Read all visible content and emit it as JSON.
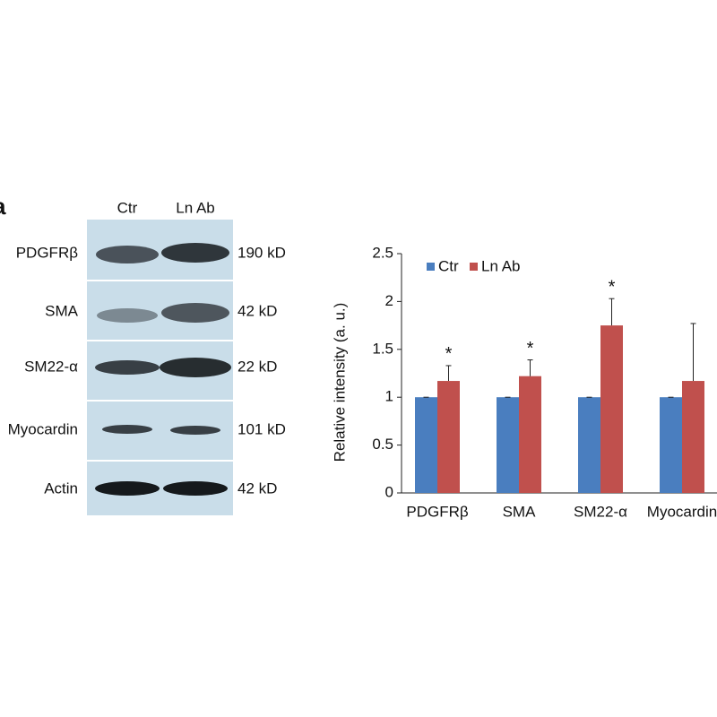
{
  "blot": {
    "panel_label": "a",
    "lanes": [
      "Ctr",
      "Ln Ab"
    ],
    "rows": [
      {
        "label": "PDGFRβ",
        "size": "190 kD"
      },
      {
        "label": "SMA",
        "size": "42 kD"
      },
      {
        "label": "SM22-α",
        "size": "22 kD"
      },
      {
        "label": "Myocardin",
        "size": "101 kD"
      },
      {
        "label": "Actin",
        "size": "42 kD"
      }
    ]
  },
  "chart_data": {
    "type": "bar",
    "y_label": "Relative intensity (a. u.)",
    "categories": [
      "PDGFRβ",
      "SMA",
      "SM22-α",
      "Myocardin"
    ],
    "series": [
      {
        "name": "Ctr",
        "color": "#4a7ebf",
        "values": [
          1,
          1,
          1,
          1
        ],
        "errors": [
          0,
          0,
          0,
          0
        ]
      },
      {
        "name": "Ln Ab",
        "color": "#c0504d",
        "values": [
          1.17,
          1.22,
          1.75,
          1.17
        ],
        "errors": [
          0.16,
          0.17,
          0.28,
          0.6
        ],
        "annotations": [
          "*",
          "*",
          "*",
          null
        ]
      }
    ],
    "ylim": [
      0,
      2.5
    ],
    "yticks": [
      0,
      0.5,
      1,
      1.5,
      2,
      2.5
    ],
    "grid": false
  }
}
